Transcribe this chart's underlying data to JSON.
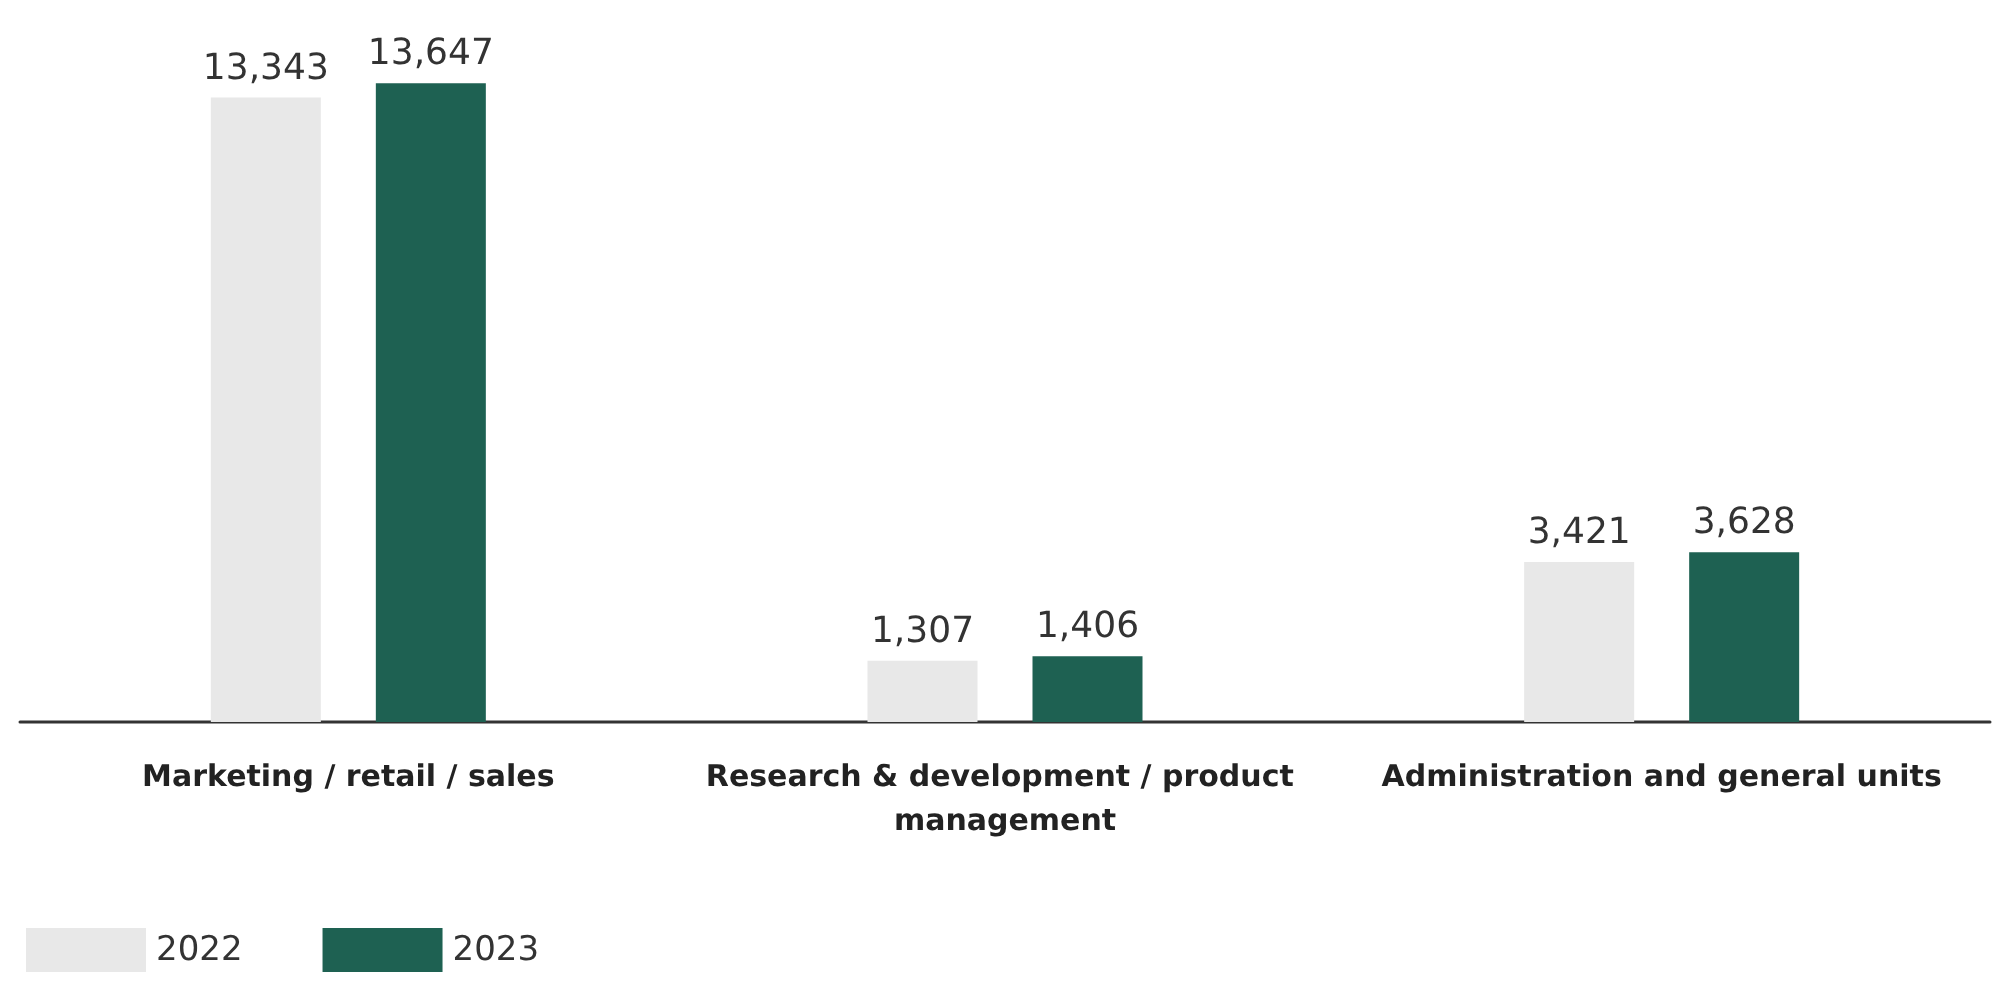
{
  "chart_data": {
    "type": "bar",
    "categories": [
      "Marketing / retail / sales",
      "Research & development / product management",
      "Administration and general units"
    ],
    "series": [
      {
        "name": "2022",
        "color": "#e8e8e8",
        "values": [
          13343,
          1307,
          3421
        ],
        "value_labels": [
          "13,343",
          "1,307",
          "3,421"
        ]
      },
      {
        "name": "2023",
        "color": "#1e6152",
        "values": [
          13647,
          1406,
          3628
        ],
        "value_labels": [
          "13,647",
          "1,406",
          "3,628"
        ]
      }
    ],
    "legend": "bottom left",
    "grid": false
  }
}
